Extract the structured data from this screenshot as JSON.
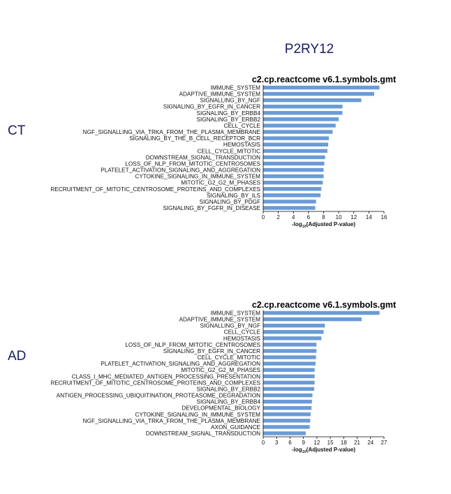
{
  "page_title": "P2RY12",
  "chart_data": [
    {
      "type": "bar",
      "orientation": "horizontal",
      "group_label": "CT",
      "title": "c2.cp.reactcome v6.1.symbols.gmt",
      "xlabel_pre": "-log",
      "xlabel_sub": "10",
      "xlabel_post": "(Adjusted P-value)",
      "xlim": [
        0,
        16
      ],
      "xticks": [
        0,
        2,
        4,
        6,
        8,
        10,
        12,
        14,
        16
      ],
      "bar_color": "#6a9bd6",
      "categories": [
        "IMMUNE_SYSTEM",
        "ADAPTIVE_IMMUNE_SYSTEM",
        "SIGNALLING_BY_NGF",
        "SIGNALING_BY_EGFR_IN_CANCER",
        "SIGNALING_BY_ERBB4",
        "SIGNALING_BY_ERBB2",
        "CELL_CYCLE",
        "NGF_SIGNALLING_VIA_TRKA_FROM_THE_PLASMA_MEMBRANE",
        "SIGNALING_BY_THE_B_CELL_RECEPTOR_BCR",
        "HEMOSTASIS",
        "CELL_CYCLE_MITOTIC",
        "DOWNSTREAM_SIGNAL_TRANSDUCTION",
        "LOSS_OF_NLP_FROM_MITOTIC_CENTROSOMES",
        "PLATELET_ACTIVATION_SIGNALING_AND_AGGREGATION",
        "CYTOKINE_SIGNALING_IN_IMMUNE_SYSTEM",
        "MITOTIC_G2_G2_M_PHASES",
        "RECRUITMENT_OF_MITOTIC_CENTROSOME_PROTEINS_AND_COMPLEXES",
        "SIGNALING_BY_ILS",
        "SIGNALING_BY_PDGF",
        "SIGNALING_BY_FGFR_IN_DISEASE"
      ],
      "values": [
        15.4,
        14.7,
        13.0,
        10.5,
        10.5,
        10.0,
        9.6,
        9.2,
        8.7,
        8.6,
        8.5,
        8.2,
        8.1,
        8.0,
        8.0,
        7.9,
        7.7,
        7.6,
        7.0,
        6.9
      ]
    },
    {
      "type": "bar",
      "orientation": "horizontal",
      "group_label": "AD",
      "title": "c2.cp.reactcome v6.1.symbols.gmt",
      "xlabel_pre": "-log",
      "xlabel_sub": "10",
      "xlabel_post": "(Adjusted P-value)",
      "xlim": [
        0,
        27
      ],
      "xticks": [
        0,
        3,
        6,
        9,
        12,
        15,
        18,
        21,
        24,
        27
      ],
      "bar_color": "#6a9bd6",
      "categories": [
        "IMMUNE_SYSTEM",
        "ADAPTIVE_IMMUNE_SYSTEM",
        "SIGNALLING_BY_NGF",
        "CELL_CYCLE",
        "HEMOSTASIS",
        "LOSS_OF_NLP_FROM_MITOTIC_CENTROSOMES",
        "SIGNALING_BY_EGFR_IN_CANCER",
        "CELL_CYCLE_MITOTIC",
        "PLATELET_ACTIVATION_SIGNALING_AND_AGGREGATION",
        "MITOTIC_G2_G2_M_PHASES",
        "CLASS_I_MHC_MEDIATED_ANTIGEN_PROCESSING_PRESENTATION",
        "RECRUITMENT_OF_MITOTIC_CENTROSOME_PROTEINS_AND_COMPLEXES",
        "SIGNALING_BY_ERBB2",
        "ANTIGEN_PROCESSING_UBIQUITINATION_PROTEASOME_DEGRADATION",
        "SIGNALING_BY_ERBB4",
        "DEVELOPMENTAL_BIOLOGY",
        "CYTOKINE_SIGNALING_IN_IMMUNE_SYSTEM",
        "NGF_SIGNALLING_VIA_TRKA_FROM_THE_PLASMA_MEMBRANE",
        "AXON_GUIDANCE",
        "DOWNSTREAM_SIGNAL_TRANSDUCTION"
      ],
      "values": [
        26.0,
        22.0,
        13.8,
        13.5,
        13.0,
        11.9,
        11.9,
        11.8,
        11.7,
        11.5,
        11.5,
        11.5,
        11.4,
        11.0,
        10.9,
        10.8,
        10.6,
        10.5,
        10.4,
        9.5
      ]
    }
  ]
}
